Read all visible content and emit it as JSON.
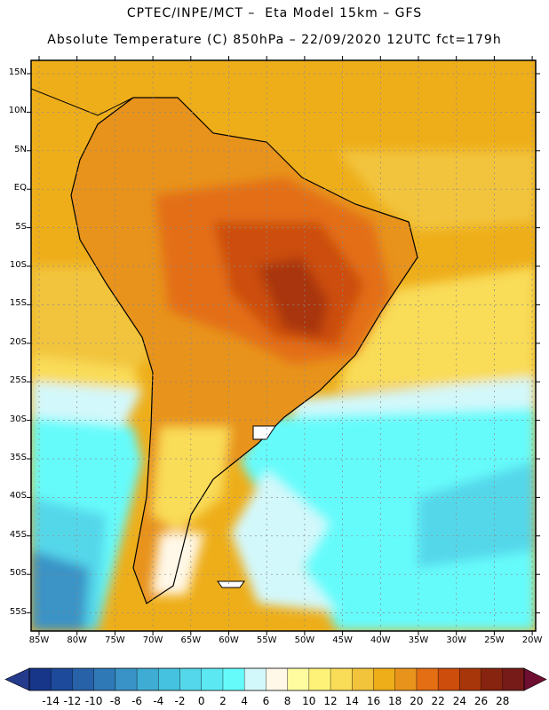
{
  "header": {
    "line1": "CPTEC/INPE/MCT –  Eta Model 15km – GFS",
    "line2": "Absolute Temperature (C) 850hPa – 22/09/2020 12UTC fct=179h"
  },
  "axes": {
    "lat_labels": [
      "15N",
      "10N",
      "5N",
      "EQ",
      "5S",
      "10S",
      "15S",
      "20S",
      "25S",
      "30S",
      "35S",
      "40S",
      "45S",
      "50S",
      "55S"
    ],
    "lon_labels": [
      "85W",
      "80W",
      "75W",
      "70W",
      "65W",
      "60W",
      "55W",
      "50W",
      "45W",
      "40W",
      "35W",
      "30W",
      "25W",
      "20W"
    ]
  },
  "colorbar": {
    "labels": [
      "-14",
      "-12",
      "-10",
      "-8",
      "-6",
      "-4",
      "-2",
      "0",
      "2",
      "4",
      "6",
      "8",
      "10",
      "12",
      "14",
      "16",
      "18",
      "20",
      "22",
      "24",
      "26",
      "28"
    ],
    "colors": [
      "#17368a",
      "#1d4a9a",
      "#2762a9",
      "#2f79b7",
      "#3a93c6",
      "#3facd3",
      "#45c2df",
      "#54d7ea",
      "#5ce8f3",
      "#66fbfb",
      "#d3f8fb",
      "#fff8e8",
      "#fffca0",
      "#fef278",
      "#f9dc58",
      "#f2c43c",
      "#eeae1a",
      "#e8931c",
      "#e36e14",
      "#cc4d0c",
      "#a8360b",
      "#86240f",
      "#761b18"
    ]
  },
  "map_colors": {
    "ocean_tropical": "#eeae1a",
    "ocean_warm": "#f2c43c",
    "ocean_mild": "#f9dc58",
    "ocean_cool": "#d3f8fb",
    "ocean_cold": "#66fbfb",
    "ocean_colder": "#54d7ea",
    "ocean_coldest": "#3a93c6",
    "land_warm": "#e8931c",
    "land_hot": "#e36e14",
    "land_hotter": "#cc4d0c",
    "land_hottest": "#a8360b",
    "land_cool": "#f9dc58",
    "land_cold": "#fff8e8"
  }
}
